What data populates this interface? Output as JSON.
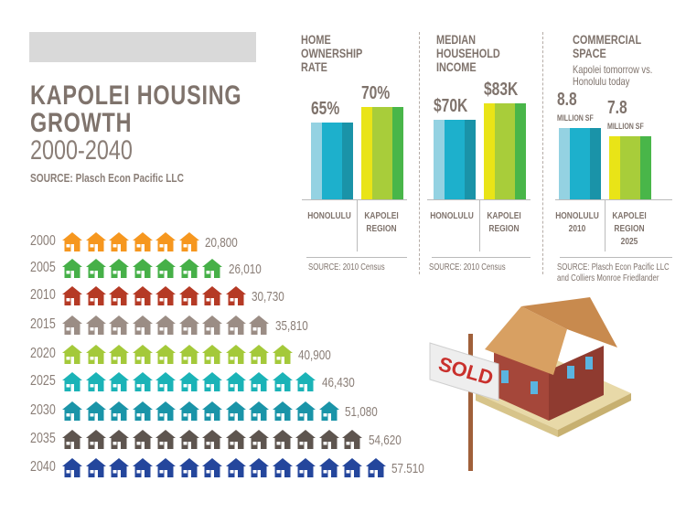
{
  "header": {
    "title_line1": "KAPOLEI HOUSING",
    "title_line2": "GROWTH",
    "years": "2000-2040",
    "source": "SOURCE: Plasch Econ Pacific LLC"
  },
  "colors": {
    "honolulu": [
      "#94d2e2",
      "#1db0cc",
      "#1a93a8"
    ],
    "kapolei": [
      "#e9e417",
      "#a8cd3a",
      "#49b649"
    ],
    "text": "#7f736c"
  },
  "chart_data": [
    {
      "type": "bar",
      "title": "HOME OWNERSHIP RATE",
      "categories": [
        "HONOLULU",
        "KAPOLEI REGION"
      ],
      "values": [
        65,
        70
      ],
      "value_labels": [
        "65%",
        "70%"
      ],
      "source": "SOURCE: 2010 Census"
    },
    {
      "type": "bar",
      "title": "MEDIAN HOUSEHOLD INCOME",
      "categories": [
        "HONOLULU",
        "KAPOLEI REGION"
      ],
      "values": [
        70,
        83
      ],
      "value_labels": [
        "$70K",
        "$83K"
      ],
      "source": "SOURCE: 2010 Census"
    },
    {
      "type": "bar",
      "title": "COMMERCIAL SPACE",
      "subtitle": "Kapolei tomorrow vs. Honolulu today",
      "categories": [
        "HONOLULU 2010",
        "KAPOLEI REGION 2025"
      ],
      "values": [
        8.8,
        7.8
      ],
      "value_labels": [
        "8.8",
        "7.8"
      ],
      "unit": "MILLION SF",
      "source": "SOURCE: Plasch Econ Pacific LLC and Colliers Monroe Friedlander"
    },
    {
      "type": "pictograph",
      "title": "Kapolei housing growth",
      "rows": [
        {
          "year": "2000",
          "value": "20,800",
          "houses": 6,
          "color": "#f6971f"
        },
        {
          "year": "2005",
          "value": "26,010",
          "houses": 7,
          "color": "#46b048"
        },
        {
          "year": "2010",
          "value": "30,730",
          "houses": 8,
          "color": "#b53a25"
        },
        {
          "year": "2015",
          "value": "35,810",
          "houses": 9,
          "color": "#9b8d85"
        },
        {
          "year": "2020",
          "value": "40,900",
          "houses": 10,
          "color": "#a4c93a"
        },
        {
          "year": "2025",
          "value": "46,430",
          "houses": 11,
          "color": "#1bb3b7"
        },
        {
          "year": "2030",
          "value": "51,080",
          "houses": 12,
          "color": "#1a94a8"
        },
        {
          "year": "2035",
          "value": "54,620",
          "houses": 13,
          "color": "#5e554f"
        },
        {
          "year": "2040",
          "value": "57.510",
          "houses": 14,
          "color": "#24469c"
        }
      ]
    }
  ],
  "sign": {
    "text": "SOLD"
  }
}
